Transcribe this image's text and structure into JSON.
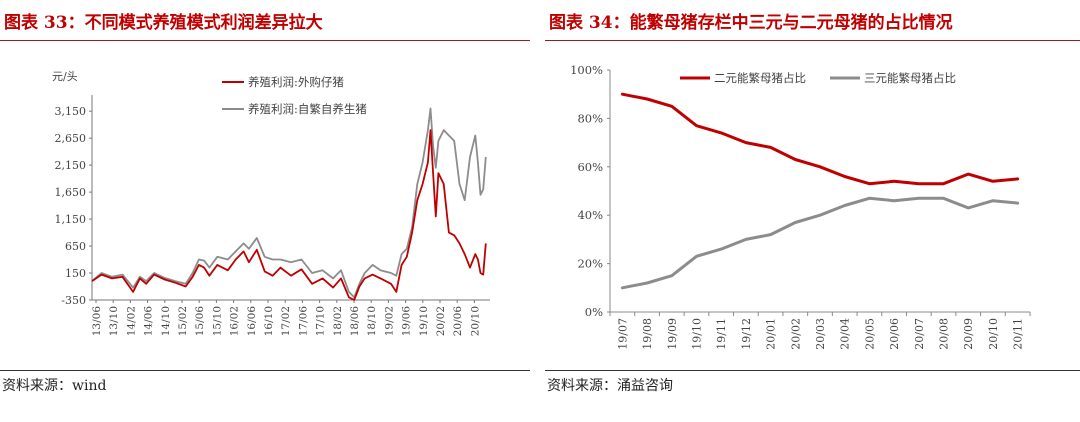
{
  "charts": [
    {
      "title": "图表 33：不同模式养殖模式利润差异拉大",
      "source": "资料来源：wind"
    },
    {
      "title": "图表 34：能繁母猪存栏中三元与二元母猪的占比情况",
      "source": "资料来源：涌益咨询"
    }
  ],
  "chart_data": [
    {
      "type": "line",
      "title": "",
      "ylabel": "元/头",
      "ylim": [
        -350,
        3450
      ],
      "yticks": [
        -350,
        150,
        650,
        1150,
        1650,
        2150,
        2650,
        3150
      ],
      "yticklabels": [
        "-350",
        "150",
        "650",
        "1,150",
        "1,650",
        "2,150",
        "2,650",
        "3,150"
      ],
      "xticks": [
        "13/06",
        "13/10",
        "14/02",
        "14/06",
        "14/10",
        "15/02",
        "15/06",
        "15/10",
        "16/02",
        "16/06",
        "16/10",
        "17/02",
        "17/06",
        "17/10",
        "18/02",
        "18/06",
        "18/10",
        "19/02",
        "19/06",
        "19/10",
        "20/02",
        "20/06",
        "20/10"
      ],
      "legend_position": "top",
      "series": [
        {
          "name": "养殖利润:外购仔猪",
          "color": "#c00000",
          "x": [
            2013.42,
            2013.6,
            2013.8,
            2014.0,
            2014.2,
            2014.33,
            2014.45,
            2014.6,
            2014.8,
            2015.0,
            2015.2,
            2015.33,
            2015.45,
            2015.55,
            2015.65,
            2015.8,
            2016.0,
            2016.15,
            2016.3,
            2016.4,
            2016.55,
            2016.7,
            2016.85,
            2017.0,
            2017.2,
            2017.4,
            2017.6,
            2017.8,
            2018.0,
            2018.15,
            2018.3,
            2018.4,
            2018.5,
            2018.6,
            2018.75,
            2018.9,
            2019.1,
            2019.2,
            2019.3,
            2019.4,
            2019.5,
            2019.6,
            2019.7,
            2019.8,
            2019.85,
            2019.9,
            2019.95,
            2020.0,
            2020.1,
            2020.2,
            2020.3,
            2020.4,
            2020.5,
            2020.6,
            2020.7,
            2020.75,
            2020.8,
            2020.85,
            2020.9
          ],
          "values": [
            0,
            120,
            50,
            80,
            -200,
            50,
            -50,
            120,
            30,
            -30,
            -100,
            80,
            300,
            250,
            100,
            300,
            200,
            400,
            550,
            350,
            580,
            180,
            100,
            250,
            100,
            220,
            -50,
            50,
            -120,
            50,
            -300,
            -350,
            -100,
            50,
            120,
            50,
            -50,
            -200,
            300,
            450,
            900,
            1500,
            1800,
            2200,
            2800,
            2000,
            1200,
            2000,
            1800,
            900,
            850,
            700,
            500,
            250,
            500,
            400,
            150,
            120,
            700
          ]
        },
        {
          "name": "养殖利润:自繁自养生猪",
          "color": "#8c8c8c",
          "x": [
            2013.42,
            2013.6,
            2013.8,
            2014.0,
            2014.2,
            2014.33,
            2014.45,
            2014.6,
            2014.8,
            2015.0,
            2015.2,
            2015.33,
            2015.45,
            2015.55,
            2015.65,
            2015.8,
            2016.0,
            2016.15,
            2016.3,
            2016.4,
            2016.55,
            2016.7,
            2016.85,
            2017.0,
            2017.2,
            2017.4,
            2017.6,
            2017.8,
            2018.0,
            2018.15,
            2018.3,
            2018.4,
            2018.5,
            2018.6,
            2018.75,
            2018.9,
            2019.1,
            2019.2,
            2019.3,
            2019.4,
            2019.5,
            2019.6,
            2019.7,
            2019.8,
            2019.85,
            2019.9,
            2019.95,
            2020.0,
            2020.1,
            2020.2,
            2020.3,
            2020.4,
            2020.5,
            2020.6,
            2020.7,
            2020.75,
            2020.8,
            2020.85,
            2020.9
          ],
          "values": [
            0,
            150,
            80,
            120,
            -120,
            80,
            0,
            150,
            60,
            0,
            -50,
            150,
            400,
            380,
            250,
            450,
            400,
            550,
            700,
            600,
            800,
            450,
            400,
            400,
            350,
            400,
            150,
            200,
            50,
            200,
            -200,
            -300,
            -50,
            150,
            300,
            200,
            150,
            100,
            500,
            600,
            1000,
            1800,
            2200,
            2800,
            3200,
            2500,
            2100,
            2600,
            2800,
            2700,
            2600,
            1800,
            1500,
            2300,
            2700,
            2200,
            1600,
            1700,
            2300
          ]
        }
      ]
    },
    {
      "type": "line",
      "title": "",
      "ylim": [
        0,
        100
      ],
      "yticks": [
        0,
        20,
        40,
        60,
        80,
        100
      ],
      "yticklabels": [
        "0%",
        "20%",
        "40%",
        "60%",
        "80%",
        "100%"
      ],
      "categories": [
        "19/07",
        "19/08",
        "19/09",
        "19/10",
        "19/11",
        "19/12",
        "20/01",
        "20/02",
        "20/03",
        "20/04",
        "20/05",
        "20/06",
        "20/07",
        "20/08",
        "20/09",
        "20/10",
        "20/11"
      ],
      "legend_position": "top",
      "series": [
        {
          "name": "二元能繁母猪占比",
          "color": "#c00000",
          "values": [
            90,
            88,
            85,
            77,
            74,
            70,
            68,
            63,
            60,
            56,
            53,
            54,
            53,
            53,
            57,
            54,
            55
          ]
        },
        {
          "name": "三元能繁母猪占比",
          "color": "#8c8c8c",
          "values": [
            10,
            12,
            15,
            23,
            26,
            30,
            32,
            37,
            40,
            44,
            47,
            46,
            47,
            47,
            43,
            46,
            45
          ]
        }
      ]
    }
  ]
}
